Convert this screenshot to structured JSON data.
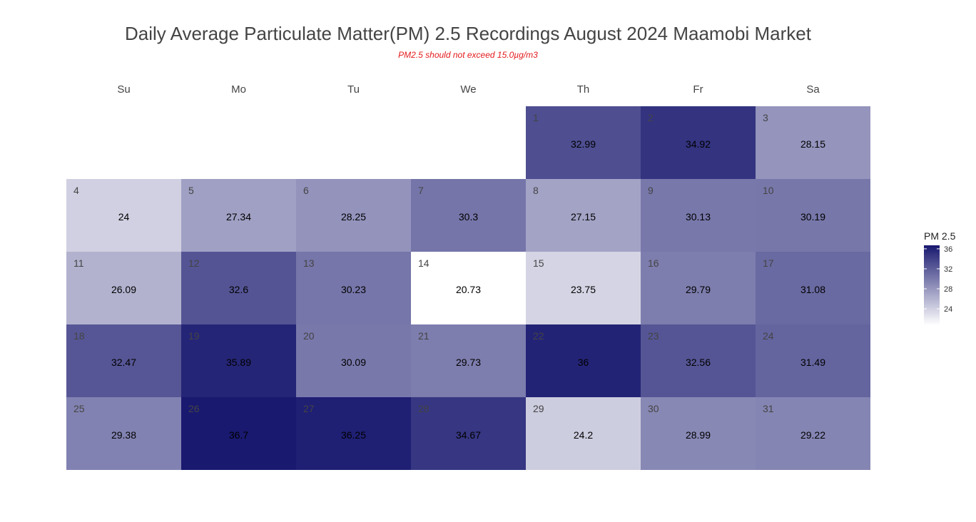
{
  "title": "Daily Average Particulate Matter(PM) 2.5 Recordings August 2024 Maamobi Market",
  "subtitle": "PM2.5 should not exceed 15.0µg/m3",
  "colors": {
    "low": "#ffffff",
    "high": "#191970",
    "subtitle": "#e41a1c"
  },
  "chart_data": {
    "type": "heatmap",
    "weekdays": [
      "Su",
      "Mo",
      "Tu",
      "We",
      "Th",
      "Fr",
      "Sa"
    ],
    "first_weekday_index": 4,
    "days": [
      1,
      2,
      3,
      4,
      5,
      6,
      7,
      8,
      9,
      10,
      11,
      12,
      13,
      14,
      15,
      16,
      17,
      18,
      19,
      20,
      21,
      22,
      23,
      24,
      25,
      26,
      27,
      28,
      29,
      30,
      31
    ],
    "values": [
      32.99,
      34.92,
      28.15,
      24,
      27.34,
      28.25,
      30.3,
      27.15,
      30.13,
      30.19,
      26.09,
      32.6,
      30.23,
      20.73,
      23.75,
      29.79,
      31.08,
      32.47,
      35.89,
      30.09,
      29.73,
      36,
      32.56,
      31.49,
      29.38,
      36.7,
      36.25,
      34.67,
      24.2,
      28.99,
      29.22
    ],
    "value_labels": [
      "32.99",
      "34.92",
      "28.15",
      "24",
      "27.34",
      "28.25",
      "30.3",
      "27.15",
      "30.13",
      "30.19",
      "26.09",
      "32.6",
      "30.23",
      "20.73",
      "23.75",
      "29.79",
      "31.08",
      "32.47",
      "35.89",
      "30.09",
      "29.73",
      "36",
      "32.56",
      "31.49",
      "29.38",
      "36.7",
      "36.25",
      "34.67",
      "24.2",
      "28.99",
      "29.22"
    ],
    "legend": {
      "title": "PM 2.5",
      "ticks": [
        24,
        28,
        32,
        36
      ],
      "range": [
        20.73,
        36.7
      ],
      "position": "right"
    }
  }
}
